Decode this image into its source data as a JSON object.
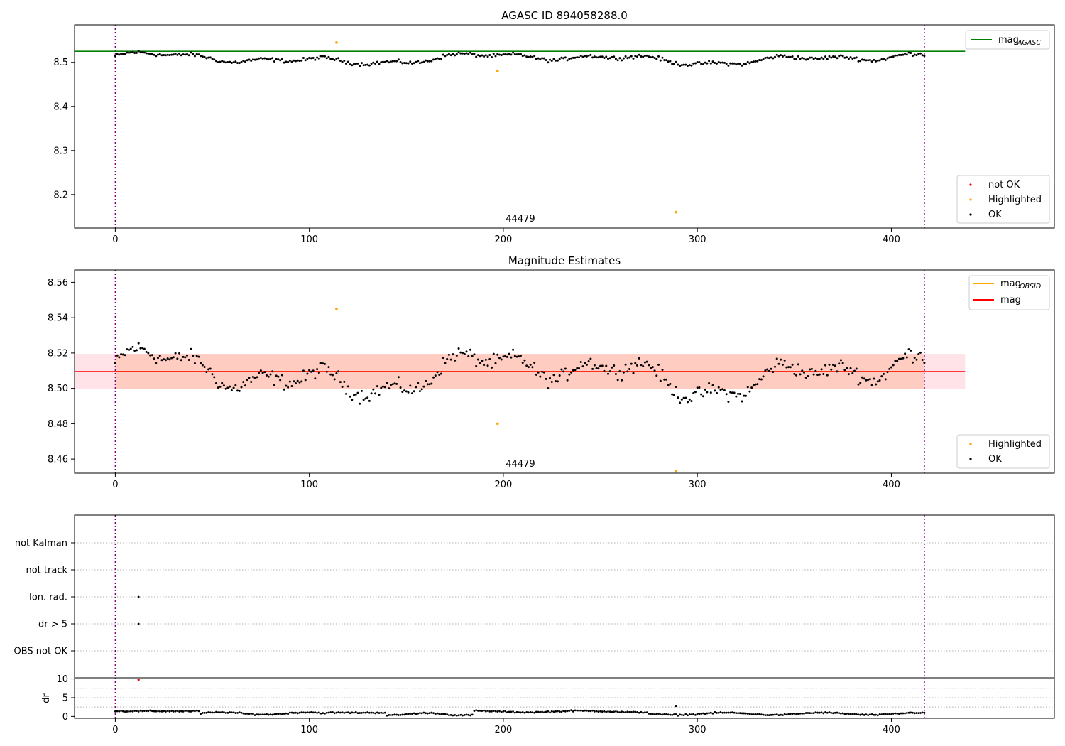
{
  "chart_data": [
    {
      "type": "scatter",
      "title": "AGASC ID 894058288.0",
      "xlim": [
        -21,
        484
      ],
      "ylim": [
        8.124,
        8.585
      ],
      "xticks": [
        0,
        100,
        200,
        300,
        400
      ],
      "yticks": [
        8.2,
        8.3,
        8.4,
        8.5
      ],
      "ytick_labels": [
        "8.2",
        "8.3",
        "8.4",
        "8.5"
      ],
      "obsid_boundaries": [
        0,
        417
      ],
      "obsid_label": "44479",
      "mag_agasc": {
        "name": "mag",
        "subscript": "AGASC",
        "value": 8.525,
        "color": "#008000",
        "x_range": [
          0,
          438
        ]
      },
      "series_ok": {
        "name": "OK",
        "color": "#000000",
        "n": 418,
        "mean": 8.509,
        "amplitude": 0.015
      },
      "highlighted": {
        "name": "Highlighted",
        "color": "#ffa500",
        "points": [
          [
            114,
            8.545
          ],
          [
            197,
            8.48
          ],
          [
            289,
            8.16
          ]
        ]
      },
      "not_ok": {
        "name": "not OK",
        "color": "#ff0000"
      },
      "legend_lines": {
        "position": "upper right",
        "entries": [
          {
            "label": "mag",
            "subscript": "AGASC",
            "color": "#008000"
          }
        ]
      },
      "legend_points": {
        "position": "lower right",
        "entries": [
          {
            "label": "not OK",
            "color": "#ff0000"
          },
          {
            "label": "Highlighted",
            "color": "#ffa500"
          },
          {
            "label": "OK",
            "color": "#000000"
          }
        ]
      }
    },
    {
      "type": "scatter",
      "title": "Magnitude Estimates",
      "xlim": [
        -21,
        484
      ],
      "ylim": [
        8.452,
        8.567
      ],
      "xticks": [
        0,
        100,
        200,
        300,
        400
      ],
      "yticks": [
        8.46,
        8.48,
        8.5,
        8.52,
        8.54,
        8.56
      ],
      "ytick_labels": [
        "8.46",
        "8.48",
        "8.50",
        "8.52",
        "8.54",
        "8.56"
      ],
      "obsid_boundaries": [
        0,
        417
      ],
      "obsid_label": "44479",
      "mag": {
        "name": "mag",
        "value": 8.5095,
        "band": [
          8.4995,
          8.5195
        ],
        "color": "#ff0000",
        "band_color": "#ffc0cb",
        "x_range": [
          -21,
          438
        ]
      },
      "mag_obsid": {
        "name": "mag",
        "subscript": "OBSID",
        "value": 8.5095,
        "band": [
          8.4995,
          8.5195
        ],
        "color": "#ffa500",
        "x_range": [
          0,
          417
        ]
      },
      "series_ok": {
        "name": "OK",
        "color": "#000000",
        "n": 418,
        "mean": 8.509,
        "amplitude": 0.015
      },
      "highlighted": {
        "name": "Highlighted",
        "color": "#ffa500",
        "points": [
          [
            114,
            8.545
          ],
          [
            197,
            8.48
          ]
        ],
        "off_scale_marker": [
          289,
          8.452
        ]
      },
      "legend_lines": {
        "position": "upper right",
        "entries": [
          {
            "label": "mag",
            "subscript": "OBSID",
            "color": "#ffa500"
          },
          {
            "label": "mag",
            "color": "#ff0000"
          }
        ]
      },
      "legend_points": {
        "position": "lower right",
        "entries": [
          {
            "label": "Highlighted",
            "color": "#ffa500"
          },
          {
            "label": "OK",
            "color": "#000000"
          }
        ]
      }
    },
    {
      "type": "scatter",
      "title": "",
      "xlim": [
        -21,
        484
      ],
      "categories": [
        "not Kalman",
        "not track",
        "Ion. rad.",
        "dr > 5",
        "OBS not OK"
      ],
      "points": [
        {
          "category": "Ion. rad.",
          "x": 12
        },
        {
          "category": "dr > 5",
          "x": 12
        }
      ],
      "obsid_boundaries": [
        0,
        417
      ]
    },
    {
      "type": "scatter",
      "title": "",
      "ylabel": "dr",
      "xlim": [
        -21,
        484
      ],
      "ylim": [
        -0.5,
        10.3
      ],
      "xticks": [
        0,
        100,
        200,
        300,
        400
      ],
      "yticks": [
        0,
        5,
        10
      ],
      "ytick_labels": [
        "0",
        "5",
        "10"
      ],
      "gridlines": [
        2.5,
        5,
        7.5
      ],
      "obsid_boundaries": [
        0,
        417
      ],
      "outliers": [
        {
          "x": 12,
          "y": 9.8,
          "color": "#ff0000"
        },
        {
          "x": 289,
          "y": 2.8,
          "color": "#000000"
        }
      ],
      "series_dr": {
        "name": "dr",
        "color": "#000000",
        "n": 418
      }
    }
  ]
}
